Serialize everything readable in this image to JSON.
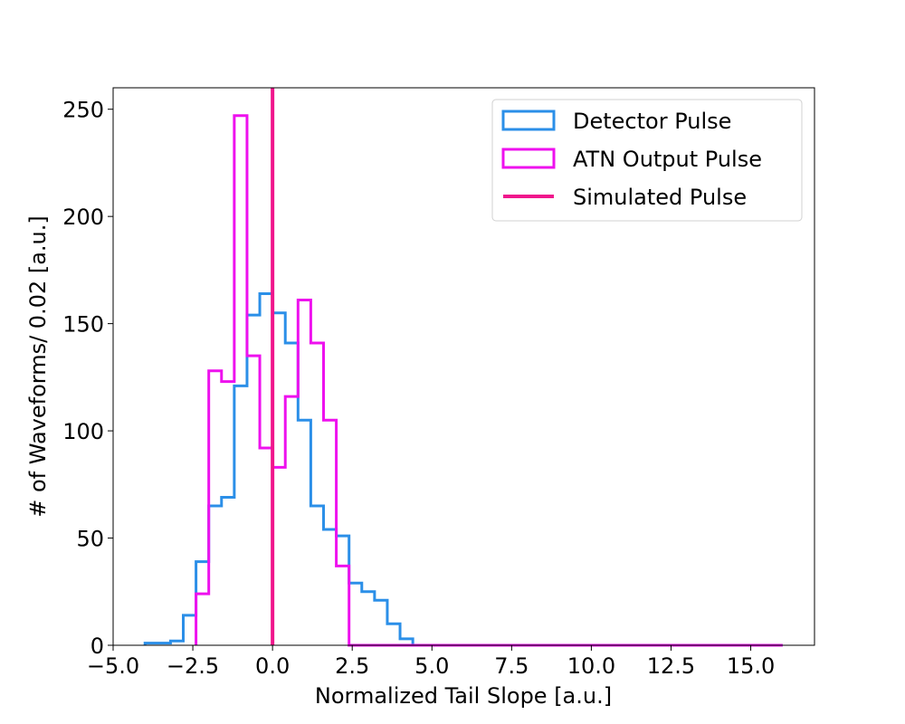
{
  "chart_data": {
    "type": "histogram",
    "title": "",
    "xlabel": "Normalized Tail Slope [a.u.]",
    "ylabel": "# of Waveforms/ 0.02 [a.u.]",
    "xlim": [
      -5.0,
      17.0
    ],
    "ylim": [
      0,
      260
    ],
    "xticks": [
      -5.0,
      -2.5,
      0.0,
      2.5,
      5.0,
      7.5,
      10.0,
      12.5,
      15.0
    ],
    "xtick_labels": [
      "−5.0",
      "−2.5",
      "0.0",
      "2.5",
      "5.0",
      "7.5",
      "10.0",
      "12.5",
      "15.0"
    ],
    "yticks": [
      0,
      50,
      100,
      150,
      200,
      250
    ],
    "ytick_labels": [
      "0",
      "50",
      "100",
      "150",
      "200",
      "250"
    ],
    "grid": false,
    "legend_position": "upper right",
    "series": [
      {
        "name": "Detector Pulse",
        "style": "step",
        "color": "#2b8fe8",
        "bin_edges": [
          -4.0,
          -3.6,
          -3.2,
          -2.8,
          -2.4,
          -2.0,
          -1.6,
          -1.2,
          -0.8,
          -0.4,
          0.0,
          0.4,
          0.8,
          1.2,
          1.6,
          2.0,
          2.4,
          2.8,
          3.2,
          3.6,
          4.0,
          4.4,
          4.8,
          16.0
        ],
        "counts": [
          1,
          1,
          2,
          14,
          39,
          65,
          69,
          121,
          154,
          164,
          155,
          141,
          105,
          65,
          54,
          51,
          29,
          25,
          21,
          10,
          3,
          0,
          0
        ]
      },
      {
        "name": "ATN Output Pulse",
        "style": "step",
        "color": "#ee11ee",
        "bin_edges": [
          -2.4,
          -2.0,
          -1.6,
          -1.2,
          -0.8,
          -0.4,
          0.0,
          0.4,
          0.8,
          1.2,
          1.6,
          2.0,
          2.4,
          16.0
        ],
        "counts": [
          24,
          128,
          123,
          247,
          135,
          92,
          83,
          116,
          161,
          141,
          105,
          37,
          0
        ]
      },
      {
        "name": "Simulated Pulse",
        "style": "vline",
        "color": "#f0168c",
        "x": 0.0
      }
    ]
  }
}
